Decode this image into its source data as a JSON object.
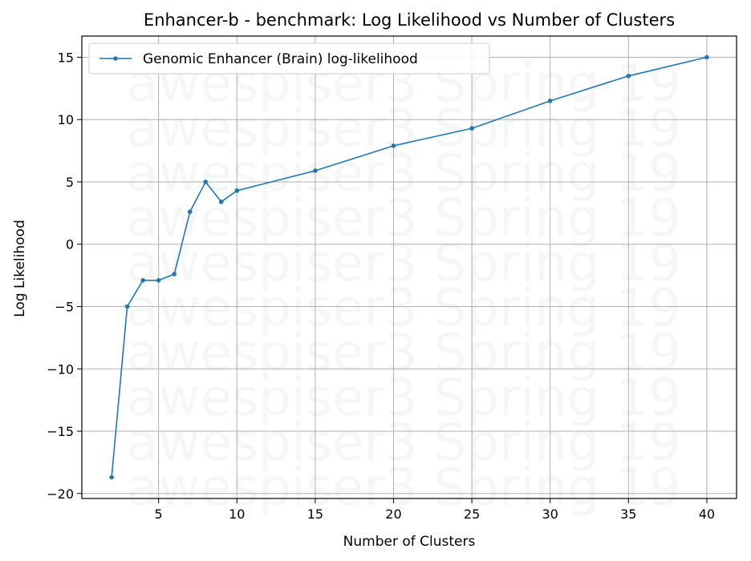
{
  "chart_data": {
    "type": "line",
    "title": "Enhancer-b - benchmark: Log Likelihood vs Number of Clusters",
    "xlabel": "Number of Clusters",
    "ylabel": "Log Likelihood",
    "x": [
      2,
      3,
      4,
      5,
      6,
      7,
      8,
      9,
      10,
      15,
      20,
      25,
      30,
      35,
      40
    ],
    "series": [
      {
        "name": "Genomic Enhancer (Brain) log-likelihood",
        "color": "#1f77b4",
        "values": [
          -18.7,
          -5.0,
          -2.9,
          -2.9,
          -2.4,
          2.6,
          5.0,
          3.4,
          4.3,
          5.9,
          7.9,
          9.3,
          11.5,
          13.5,
          15.0
        ]
      }
    ],
    "xlim": [
      0.1,
      41.9
    ],
    "ylim": [
      -20.4,
      16.7
    ],
    "xticks": [
      5,
      10,
      15,
      20,
      25,
      30,
      35,
      40
    ],
    "yticks": [
      -20,
      -15,
      -10,
      -5,
      0,
      5,
      10,
      15
    ],
    "ytick_labels": [
      "−20",
      "−15",
      "−10",
      "−5",
      "0",
      "5",
      "10",
      "15"
    ],
    "grid": true,
    "legend_position": "top-left",
    "watermark": "awespiser3 Spring 19"
  }
}
